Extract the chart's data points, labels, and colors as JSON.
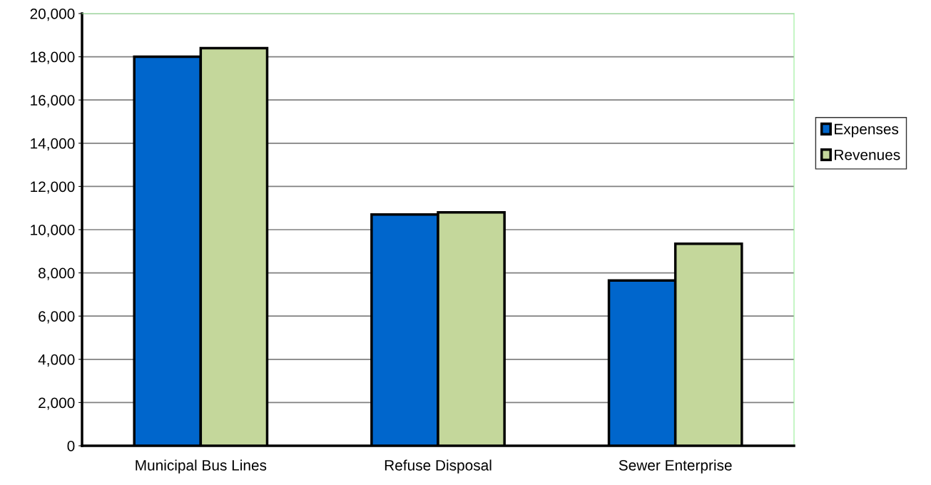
{
  "chart_data": {
    "type": "bar",
    "categories": [
      "Municipal Bus Lines",
      "Refuse Disposal",
      "Sewer Enterprise"
    ],
    "series": [
      {
        "name": "Expenses",
        "color": "#0066cc",
        "values": [
          18000,
          10700,
          7650
        ]
      },
      {
        "name": "Revenues",
        "color": "#c4d79b",
        "values": [
          18400,
          10800,
          9350
        ]
      }
    ],
    "ylim": [
      0,
      20000
    ],
    "yticks": [
      {
        "value": 0,
        "label": "0"
      },
      {
        "value": 2000,
        "label": "2,000"
      },
      {
        "value": 4000,
        "label": "4,000"
      },
      {
        "value": 6000,
        "label": "6,000"
      },
      {
        "value": 8000,
        "label": "8,000"
      },
      {
        "value": 10000,
        "label": "10,000"
      },
      {
        "value": 12000,
        "label": "12,000"
      },
      {
        "value": 14000,
        "label": "14,000"
      },
      {
        "value": 16000,
        "label": "16,000"
      },
      {
        "value": 18000,
        "label": "18,000"
      },
      {
        "value": 20000,
        "label": "20,000"
      }
    ],
    "grid": "y",
    "legend": "right"
  }
}
